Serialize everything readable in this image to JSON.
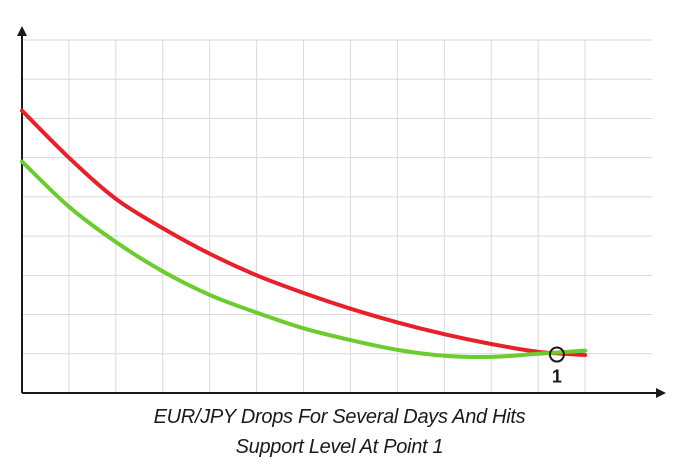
{
  "chart_data": {
    "type": "line",
    "title": "",
    "xlabel": "",
    "ylabel": "",
    "grid": true,
    "xlim": [
      0,
      13
    ],
    "ylim": [
      0,
      9
    ],
    "x_ticks_shown": false,
    "y_ticks_shown": false,
    "series": [
      {
        "color": "#e8202a",
        "x": [
          0,
          1,
          2,
          3,
          4,
          5,
          6,
          7,
          8,
          9,
          10,
          11,
          12
        ],
        "y": [
          7.2,
          6.0,
          4.95,
          4.2,
          3.55,
          3.0,
          2.55,
          2.15,
          1.8,
          1.5,
          1.25,
          1.05,
          0.97
        ]
      },
      {
        "color": "#6ccb2d",
        "x": [
          0,
          1,
          2,
          3,
          4,
          5,
          6,
          7,
          8,
          9,
          10,
          11,
          12
        ],
        "y": [
          5.9,
          4.75,
          3.85,
          3.1,
          2.5,
          2.05,
          1.65,
          1.35,
          1.1,
          0.95,
          0.92,
          1.0,
          1.08
        ]
      }
    ],
    "annotations": [
      {
        "label": "1",
        "x": 11.4,
        "y": 0.98,
        "marker": "open-circle"
      }
    ]
  },
  "caption": {
    "line1": "EUR/JPY Drops For Several Days And Hits",
    "line2": "Support Level At Point 1"
  },
  "colors": {
    "axis": "#1a1a1a",
    "grid": "#d9d9d9",
    "red_line": "#e8202a",
    "green_line": "#6ccb2d"
  }
}
